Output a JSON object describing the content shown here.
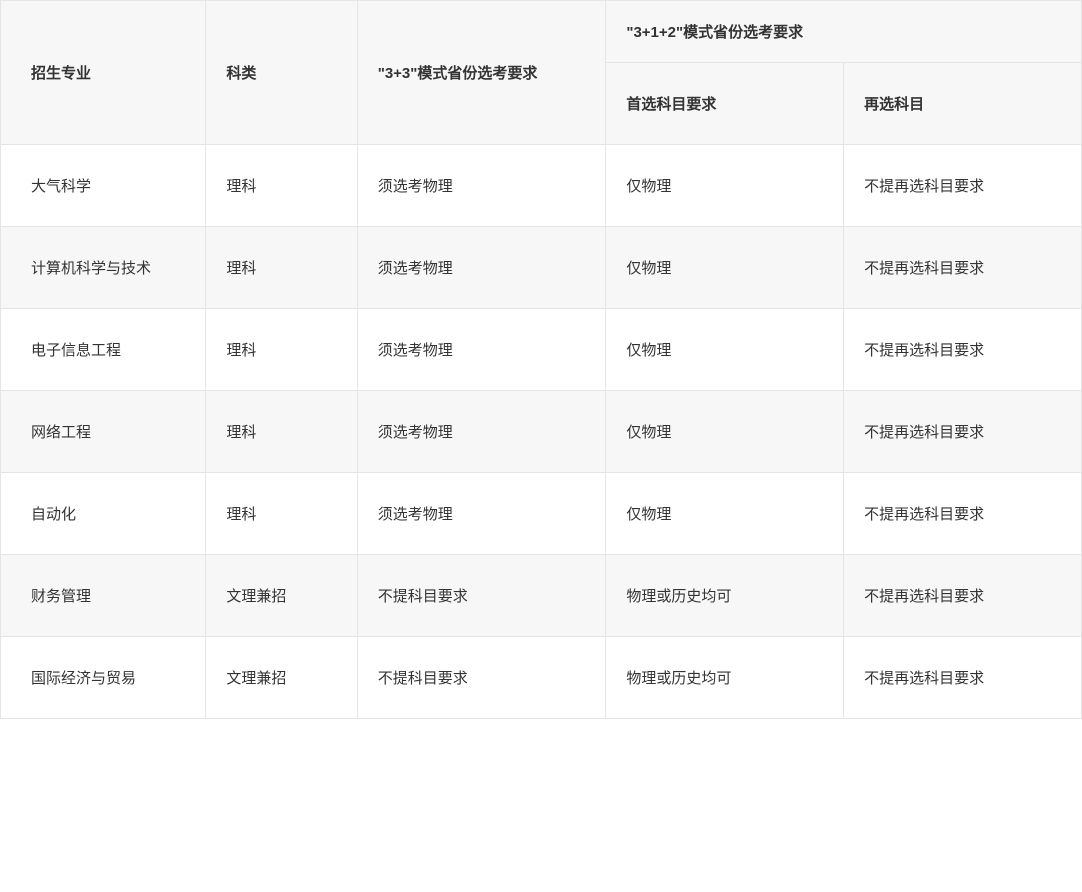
{
  "table": {
    "headers": {
      "major": "招生专业",
      "category": "科类",
      "mode33": "\"3+3\"模式省份选考要求",
      "mode312": "\"3+1+2\"模式省份选考要求",
      "primary_subject": "首选科目要求",
      "secondary_subject": "再选科目"
    },
    "rows": [
      {
        "major": "大气科学",
        "category": "理科",
        "mode33": "须选考物理",
        "primary": "仅物理",
        "secondary": "不提再选科目要求"
      },
      {
        "major": "计算机科学与技术",
        "category": "理科",
        "mode33": "须选考物理",
        "primary": "仅物理",
        "secondary": "不提再选科目要求"
      },
      {
        "major": "电子信息工程",
        "category": "理科",
        "mode33": "须选考物理",
        "primary": "仅物理",
        "secondary": "不提再选科目要求"
      },
      {
        "major": "网络工程",
        "category": "理科",
        "mode33": "须选考物理",
        "primary": "仅物理",
        "secondary": "不提再选科目要求"
      },
      {
        "major": "自动化",
        "category": "理科",
        "mode33": "须选考物理",
        "primary": "仅物理",
        "secondary": "不提再选科目要求"
      },
      {
        "major": "财务管理",
        "category": "文理兼招",
        "mode33": "不提科目要求",
        "primary": "物理或历史均可",
        "secondary": "不提再选科目要求"
      },
      {
        "major": "国际经济与贸易",
        "category": "文理兼招",
        "mode33": "不提科目要求",
        "primary": "物理或历史均可",
        "secondary": "不提再选科目要求"
      }
    ],
    "styling": {
      "border_color": "#e5e5e5",
      "header_bg": "#f7f7f7",
      "row_odd_bg": "#ffffff",
      "row_even_bg": "#f7f7f7",
      "text_color": "#333333",
      "font_size": 15,
      "cell_padding_v": 30,
      "cell_padding_h": 20,
      "column_widths_pct": [
        19,
        14,
        23,
        22,
        22
      ]
    }
  }
}
